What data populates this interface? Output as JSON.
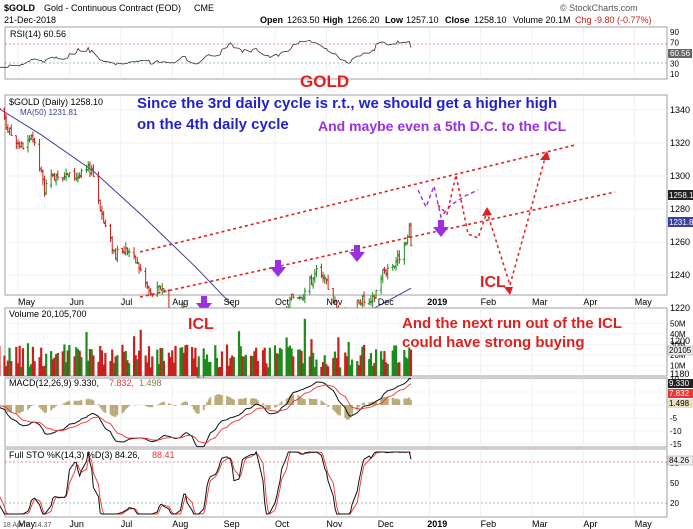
{
  "header": {
    "symbol": "$GOLD",
    "name": "Gold - Continuous Contract (EOD)",
    "exchange": "CME",
    "date": "21-Dec-2018",
    "open_label": "Open",
    "open": "1263.50",
    "high_label": "High",
    "high": "1266.20",
    "low_label": "Low",
    "low": "1257.10",
    "close_label": "Close",
    "close": "1258.10",
    "volume": "Volume 20.1M",
    "chg": "Chg -9.80 (-0.77%)",
    "brand": "© StockCharts.com"
  },
  "rsi": {
    "label": "RSI(14) 60.56",
    "value_tag": "60.56",
    "ticks": [
      "90",
      "70",
      "50",
      "30",
      "10"
    ]
  },
  "price": {
    "label": "$GOLD (Daily) 1258.10",
    "ma_label": "MA(50) 1231.81",
    "ticks": [
      "1340",
      "1320",
      "1300",
      "1280",
      "1260",
      "1240",
      "1220",
      "1200",
      "1180"
    ],
    "last_tag": "1258.1",
    "ma_tag": "1231.8"
  },
  "volume": {
    "label": "Volume 20,105,700",
    "ticks": [
      "50M",
      "40M",
      "30M",
      "20M",
      "10M"
    ],
    "value_tag": "20105"
  },
  "macd": {
    "label_main": "MACD(12,26,9) 9.330,",
    "label_signal": "7.832,",
    "label_hist": "1.498",
    "tag_main": "9.330",
    "tag_signal": "7.832",
    "tag_hist": "1.498",
    "ticks": [
      "10",
      "5",
      "0",
      "-5",
      "-10",
      "-15"
    ]
  },
  "sto": {
    "label_main": "Full STO %K(14,3) %D(3) 84.26,",
    "label_d": "88.41",
    "tag": "84.26",
    "ticks": [
      "80",
      "50",
      "20"
    ]
  },
  "xaxis": {
    "labels": [
      "May",
      "Jun",
      "Jul",
      "Aug",
      "Sep",
      "Oct",
      "Nov",
      "Dec",
      "2019",
      "Feb",
      "Mar",
      "Apr",
      "May"
    ],
    "footer": "18 Apr Y -14.37"
  },
  "annotations": {
    "title": "GOLD",
    "line1": "Since the 3rd daily cycle is r.t., we should get a higher high",
    "line2": "on the 4th daily cycle",
    "line3": "And maybe even a 5th D.C. to the ICL",
    "icl_right": "ICL",
    "icl_bottom": "ICL",
    "buy1": "And the next run out of the ICL",
    "buy2": "could have strong buying"
  },
  "colors": {
    "up": "#1d8a1d",
    "down": "#c8201c",
    "ma": "#3a3fa0",
    "channel": "#e02020",
    "title_red": "#e02020",
    "annot_blue": "#2222cc",
    "annot_purple": "#9b30e0",
    "signal": "#ee3333"
  },
  "chart_data": {
    "type": "line",
    "title": "$GOLD (Daily) 1258.10",
    "ylim": [
      1170,
      1350
    ],
    "series": [
      {
        "name": "$GOLD",
        "points": [
          [
            "2018-04-18",
            1346
          ],
          [
            "2018-04-25",
            1328
          ],
          [
            "2018-05-03",
            1318
          ],
          [
            "2018-05-10",
            1322
          ],
          [
            "2018-05-17",
            1292
          ],
          [
            "2018-05-24",
            1302
          ],
          [
            "2018-05-31",
            1300
          ],
          [
            "2018-06-07",
            1300
          ],
          [
            "2018-06-14",
            1305
          ],
          [
            "2018-06-21",
            1272
          ],
          [
            "2018-06-28",
            1252
          ],
          [
            "2018-07-05",
            1256
          ],
          [
            "2018-07-12",
            1245
          ],
          [
            "2018-07-19",
            1228
          ],
          [
            "2018-07-26",
            1233
          ],
          [
            "2018-08-02",
            1214
          ],
          [
            "2018-08-09",
            1219
          ],
          [
            "2018-08-16",
            1176
          ],
          [
            "2018-08-23",
            1205
          ],
          [
            "2018-08-30",
            1206
          ],
          [
            "2018-09-06",
            1200
          ],
          [
            "2018-09-13",
            1208
          ],
          [
            "2018-09-20",
            1210
          ],
          [
            "2018-09-27",
            1190
          ],
          [
            "2018-10-04",
            1205
          ],
          [
            "2018-10-11",
            1227
          ],
          [
            "2018-10-18",
            1229
          ],
          [
            "2018-10-26",
            1242
          ],
          [
            "2018-11-02",
            1233
          ],
          [
            "2018-11-09",
            1215
          ],
          [
            "2018-11-13",
            1201
          ],
          [
            "2018-11-20",
            1226
          ],
          [
            "2018-11-27",
            1222
          ],
          [
            "2018-12-04",
            1242
          ],
          [
            "2018-12-11",
            1247
          ],
          [
            "2018-12-18",
            1258
          ],
          [
            "2018-12-20",
            1267
          ],
          [
            "2018-12-21",
            1258
          ]
        ]
      },
      {
        "name": "MA(50)",
        "points": [
          [
            "2018-04-18",
            1342
          ],
          [
            "2018-05-15",
            1325
          ],
          [
            "2018-06-15",
            1303
          ],
          [
            "2018-07-15",
            1275
          ],
          [
            "2018-08-15",
            1245
          ],
          [
            "2018-09-15",
            1212
          ],
          [
            "2018-10-15",
            1205
          ],
          [
            "2018-11-15",
            1212
          ],
          [
            "2018-12-21",
            1232
          ]
        ]
      }
    ],
    "rsi_last": 60.56,
    "volume_last": 20105700,
    "macd_last": {
      "macd": 9.33,
      "signal": 7.832,
      "hist": 1.498
    },
    "full_sto_last": {
      "k": 84.26,
      "d": 88.41
    }
  }
}
